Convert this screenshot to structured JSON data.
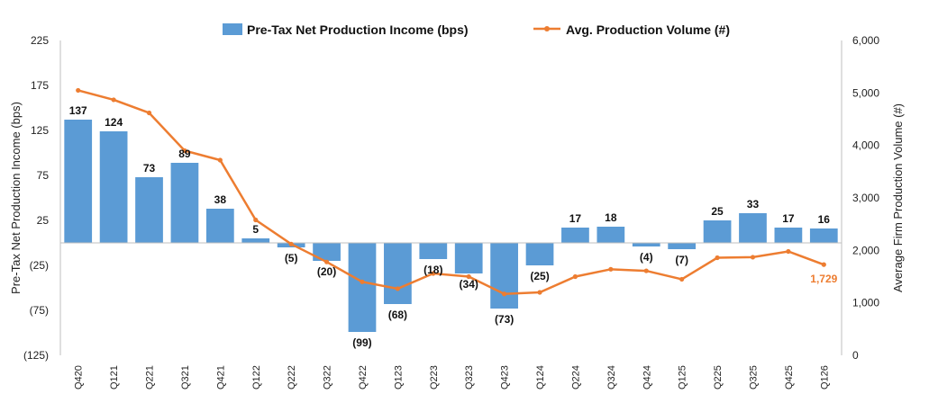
{
  "chart_data": {
    "type": "bar+line",
    "categories": [
      "Q420",
      "Q121",
      "Q221",
      "Q321",
      "Q421",
      "Q122",
      "Q222",
      "Q322",
      "Q422",
      "Q123",
      "Q223",
      "Q323",
      "Q423",
      "Q124",
      "Q224",
      "Q324",
      "Q424",
      "Q125",
      "Q225",
      "Q325",
      "Q425",
      "Q126"
    ],
    "series": [
      {
        "name": "Pre-Tax Net Production Income (bps)",
        "type": "bar",
        "axis": "left",
        "color": "#5B9BD5",
        "values": [
          137,
          124,
          73,
          89,
          38,
          5,
          -5,
          -20,
          -99,
          -68,
          -18,
          -34,
          -73,
          -25,
          17,
          18,
          -4,
          -7,
          25,
          33,
          17,
          16
        ],
        "labels": [
          "137",
          "124",
          "73",
          "89",
          "38",
          "5",
          "(5)",
          "(20)",
          "(99)",
          "(68)",
          "(18)",
          "(34)",
          "(73)",
          "(25)",
          "17",
          "18",
          "(4)",
          "(7)",
          "25",
          "33",
          "17",
          "16"
        ]
      },
      {
        "name": "Avg. Production Volume (#)",
        "type": "line",
        "axis": "right",
        "color": "#ED7D31",
        "values": [
          5050,
          4870,
          4620,
          3900,
          3720,
          2580,
          2120,
          1780,
          1400,
          1270,
          1560,
          1500,
          1170,
          1200,
          1500,
          1640,
          1610,
          1450,
          1860,
          1870,
          1980,
          1729
        ],
        "last_label": "1,729"
      }
    ],
    "ylabel": "Pre-Tax Net Production Income (bps)",
    "y2label": "Average Firm Production Volume (#)",
    "ylim": [
      -125,
      225
    ],
    "y2lim": [
      0,
      6000
    ],
    "yticks": [
      "225",
      "175",
      "125",
      "75",
      "25",
      "(25)",
      "(75)",
      "(125)"
    ],
    "yticks_values": [
      225,
      175,
      125,
      75,
      25,
      -25,
      -75,
      -125
    ],
    "y2ticks": [
      "6,000",
      "5,000",
      "4,000",
      "3,000",
      "2,000",
      "1,000",
      "0"
    ],
    "y2ticks_values": [
      6000,
      5000,
      4000,
      3000,
      2000,
      1000,
      0
    ],
    "legend": "top-center",
    "grid": false
  }
}
